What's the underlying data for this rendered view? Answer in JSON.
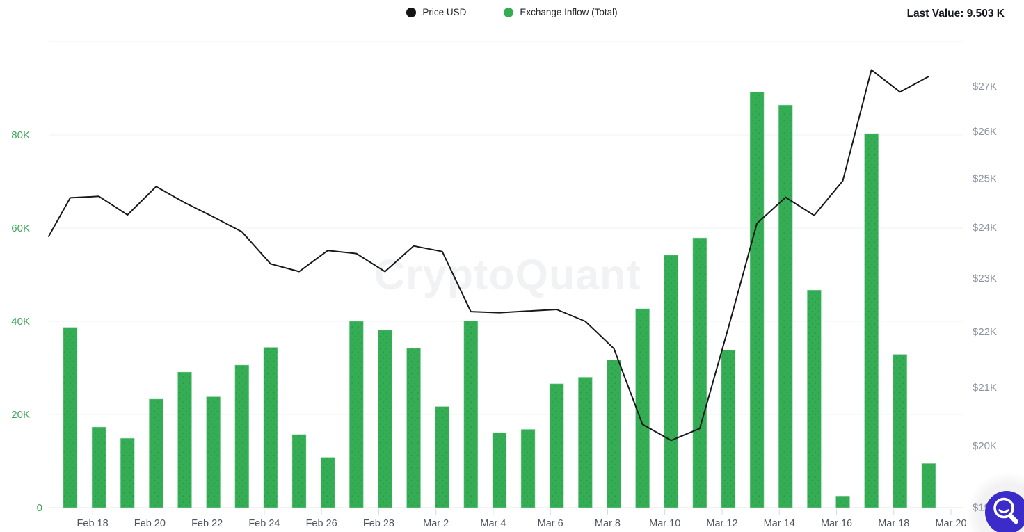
{
  "header": {
    "legend": [
      {
        "label": "Price USD",
        "color": "#141414"
      },
      {
        "label": "Exchange Inflow (Total)",
        "color": "#34ad55"
      }
    ],
    "last_value_label": "Last Value: 9.503 K"
  },
  "watermark": "CryptoQuant",
  "zoom_button": {
    "icon": "magnifier-smile-icon",
    "color": "#3b2cc9"
  },
  "chart_data": {
    "type": "bar+line",
    "title": "",
    "grid": true,
    "legend_position": "top-center",
    "x": [
      "Feb 17",
      "Feb 18",
      "Feb 19",
      "Feb 20",
      "Feb 21",
      "Feb 22",
      "Feb 23",
      "Feb 24",
      "Feb 25",
      "Feb 26",
      "Feb 27",
      "Feb 28",
      "Mar 1",
      "Mar 2",
      "Mar 3",
      "Mar 4",
      "Mar 5",
      "Mar 6",
      "Mar 7",
      "Mar 8",
      "Mar 9",
      "Mar 10",
      "Mar 11",
      "Mar 12",
      "Mar 13",
      "Mar 14",
      "Mar 15",
      "Mar 16",
      "Mar 17",
      "Mar 18",
      "Mar 19"
    ],
    "x_tick_labels": [
      "Feb 18",
      "Feb 20",
      "Feb 22",
      "Feb 24",
      "Feb 26",
      "Feb 28",
      "Mar 2",
      "Mar 4",
      "Mar 6",
      "Mar 8",
      "Mar 10",
      "Mar 12",
      "Mar 14",
      "Mar 16",
      "Mar 18",
      "Mar 20"
    ],
    "series": [
      {
        "name": "Exchange Inflow (Total)",
        "type": "bar",
        "axis": "left",
        "color": "#34ad55",
        "values_k": [
          38.7,
          17.3,
          14.9,
          23.3,
          29.1,
          23.8,
          30.6,
          34.4,
          15.7,
          10.8,
          40.0,
          38.1,
          34.2,
          21.7,
          40.1,
          16.1,
          16.8,
          26.6,
          28.0,
          31.7,
          42.7,
          54.2,
          57.9,
          33.8,
          89.2,
          86.4,
          46.7,
          2.5,
          80.3,
          32.9,
          9.503
        ]
      },
      {
        "name": "Price USD",
        "type": "line",
        "axis": "right",
        "color": "#16181c",
        "enters_from_left_edge_at_usd_k": 23.82,
        "values_usd_k": [
          24.6,
          24.63,
          24.25,
          24.83,
          24.5,
          24.21,
          23.91,
          23.28,
          23.13,
          23.54,
          23.48,
          23.13,
          23.63,
          23.52,
          22.37,
          22.35,
          22.38,
          22.41,
          22.19,
          21.69,
          20.36,
          20.09,
          20.29,
          22.07,
          24.08,
          24.61,
          24.24,
          24.95,
          27.37,
          26.87,
          27.22
        ]
      }
    ],
    "left_axis": {
      "tick_labels": [
        "0",
        "20K",
        "40K",
        "60K",
        "80K"
      ],
      "tick_values_k": [
        0,
        20,
        40,
        60,
        80
      ],
      "top_gridline_value_k": 100,
      "label_color": "#3ea55a"
    },
    "right_axis": {
      "tick_labels": [
        "$19K",
        "$20K",
        "$21K",
        "$22K",
        "$23K",
        "$24K",
        "$25K",
        "$26K",
        "$27K"
      ],
      "tick_values_usd_k": [
        19,
        20,
        21,
        22,
        23,
        24,
        25,
        26,
        27
      ],
      "scale": "log",
      "label_color": "#8d93a1"
    },
    "x_axis_label_color": "#4f5663",
    "last_value_k": 9.503
  }
}
